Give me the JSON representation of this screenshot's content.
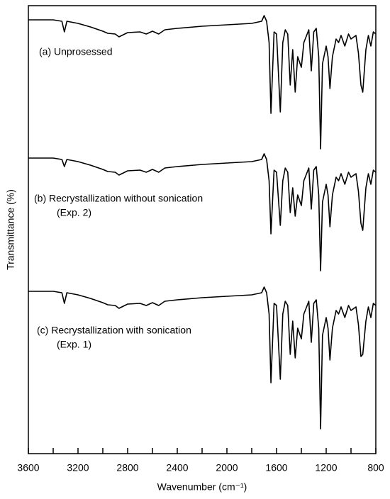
{
  "chart_data": {
    "type": "line",
    "xlabel": "Wavenumber (cm⁻¹)",
    "ylabel": "Transmittance (%)",
    "xlim": [
      3600,
      800
    ],
    "xticks": [
      3600,
      3200,
      2800,
      2400,
      2000,
      1600,
      1200,
      800
    ],
    "xminorticks": [
      3400,
      3000,
      2600,
      2200,
      1800,
      1400,
      1000
    ],
    "ylim": [
      0,
      632
    ],
    "annotations": [
      [
        "(a) Unprosessed"
      ],
      [
        "(b) Recrystallization without sonication",
        "(Exp. 2)"
      ],
      [
        "(c) Recrystallization with sonication",
        "(Exp. 1)"
      ]
    ],
    "x": [
      3600,
      3400,
      3330,
      3310,
      3290,
      3200,
      3100,
      3000,
      2960,
      2900,
      2870,
      2800,
      2700,
      2650,
      2600,
      2550,
      2500,
      2400,
      2200,
      2000,
      1800,
      1720,
      1700,
      1680,
      1660,
      1645,
      1620,
      1600,
      1570,
      1550,
      1530,
      1510,
      1490,
      1470,
      1450,
      1430,
      1400,
      1380,
      1340,
      1320,
      1300,
      1280,
      1260,
      1245,
      1230,
      1200,
      1185,
      1170,
      1150,
      1120,
      1100,
      1080,
      1050,
      1020,
      1000,
      960,
      940,
      920,
      905,
      880,
      860,
      840,
      820,
      800
    ],
    "series": [
      {
        "color": "#000000",
        "values": [
          612,
          612,
          610,
          595,
          610,
          607,
          602,
          596,
          593,
          592,
          588,
          594,
          595,
          592,
          596,
          592,
          598,
          600,
          603,
          605,
          607,
          610,
          618,
          610,
          580,
          480,
          595,
          592,
          482,
          580,
          598,
          592,
          520,
          570,
          510,
          560,
          545,
          580,
          598,
          540,
          595,
          600,
          560,
          430,
          550,
          575,
          560,
          515,
          560,
          585,
          580,
          590,
          575,
          592,
          585,
          590,
          565,
          520,
          510,
          570,
          590,
          575,
          595,
          592
        ]
      },
      {
        "color": "#000000",
        "values": [
          417,
          417,
          415,
          405,
          415,
          412,
          407,
          401,
          398,
          397,
          393,
          399,
          400,
          397,
          401,
          397,
          403,
          405,
          408,
          410,
          412,
          415,
          423,
          415,
          385,
          310,
          400,
          397,
          322,
          385,
          403,
          397,
          340,
          375,
          335,
          365,
          350,
          385,
          403,
          345,
          400,
          405,
          365,
          258,
          355,
          380,
          365,
          320,
          365,
          390,
          385,
          395,
          380,
          397,
          390,
          395,
          370,
          325,
          315,
          375,
          395,
          380,
          400,
          397
        ]
      },
      {
        "color": "#000000",
        "values": [
          229,
          229,
          227,
          212,
          227,
          224,
          219,
          213,
          210,
          209,
          205,
          211,
          212,
          209,
          213,
          209,
          215,
          217,
          220,
          222,
          224,
          227,
          235,
          227,
          197,
          100,
          212,
          209,
          105,
          197,
          215,
          209,
          140,
          187,
          135,
          177,
          162,
          197,
          215,
          157,
          212,
          217,
          177,
          35,
          167,
          192,
          177,
          132,
          177,
          202,
          197,
          207,
          192,
          209,
          202,
          207,
          182,
          137,
          140,
          187,
          207,
          192,
          212,
          209
        ]
      }
    ]
  }
}
